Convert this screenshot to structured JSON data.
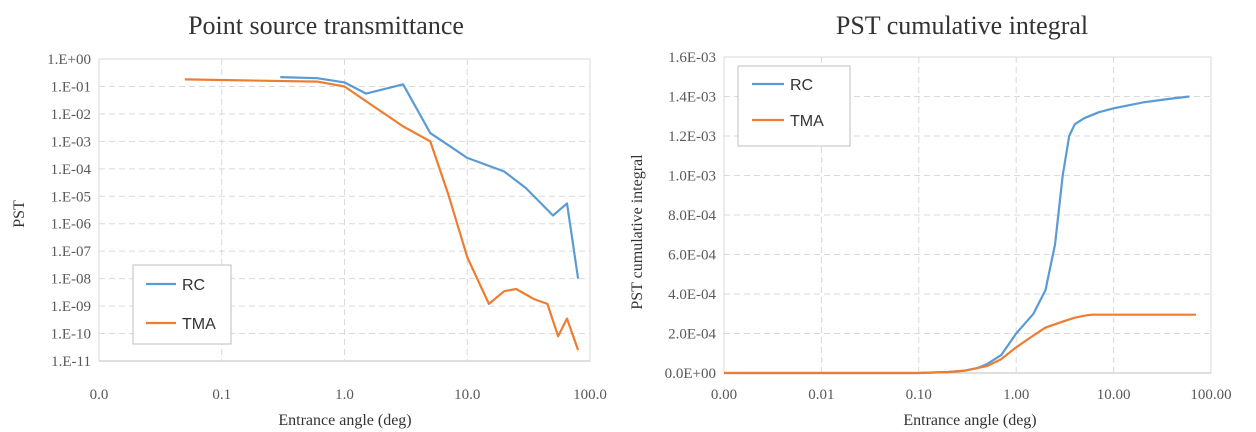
{
  "chart_data": [
    {
      "type": "line",
      "title": "Point source transmittance",
      "xlabel": "Entrance angle (deg)",
      "ylabel": "PST",
      "x_scale": "log",
      "y_scale": "log",
      "xlim": [
        0.01,
        100
      ],
      "ylim": [
        1e-11,
        1
      ],
      "x_ticks": [
        0.01,
        0.1,
        1,
        10,
        100
      ],
      "x_tick_labels": [
        "0.0",
        "0.1",
        "1.0",
        "10.0",
        "100.0"
      ],
      "y_ticks": [
        1,
        0.1,
        0.01,
        0.001,
        0.0001,
        1e-05,
        1e-06,
        1e-07,
        1e-08,
        1e-09,
        1e-10,
        1e-11
      ],
      "y_tick_labels": [
        "1.E+00",
        "1.E-01",
        "1.E-02",
        "1.E-03",
        "1.E-04",
        "1.E-05",
        "1.E-06",
        "1.E-07",
        "1.E-08",
        "1.E-09",
        "1.E-10",
        "1.E-11"
      ],
      "grid": true,
      "legend_position": "bottom-left",
      "series": [
        {
          "name": "RC",
          "color": "#5B9BD5",
          "x": [
            0.3,
            0.6,
            1.0,
            1.5,
            3.0,
            5.0,
            10.0,
            20.0,
            30.0,
            50.0,
            65.0,
            80.0
          ],
          "y": [
            0.22,
            0.2,
            0.14,
            0.055,
            0.12,
            0.002,
            0.00025,
            8e-05,
            2e-05,
            2e-06,
            5.5e-06,
            1e-08
          ]
        },
        {
          "name": "TMA",
          "color": "#ED7D31",
          "x": [
            0.05,
            0.6,
            1.0,
            3.0,
            5.0,
            7.0,
            10.0,
            15.0,
            20.0,
            25.0,
            35.0,
            45.0,
            55.0,
            65.0,
            80.0
          ],
          "y": [
            0.18,
            0.15,
            0.1,
            0.0035,
            0.001,
            1.2e-05,
            6e-08,
            1.2e-09,
            3.5e-09,
            4.2e-09,
            1.8e-09,
            1.2e-09,
            8e-11,
            3.5e-10,
            2.5e-11
          ]
        }
      ]
    },
    {
      "type": "line",
      "title": "PST cumulative integral",
      "xlabel": "Entrance angle (deg)",
      "ylabel": "PST cumulative integral",
      "x_scale": "log",
      "y_scale": "linear",
      "xlim": [
        0.001,
        100
      ],
      "ylim": [
        0,
        0.0016
      ],
      "x_ticks": [
        0.001,
        0.01,
        0.1,
        1,
        10,
        100
      ],
      "x_tick_labels": [
        "0.00",
        "0.01",
        "0.10",
        "1.00",
        "10.00",
        "100.00"
      ],
      "y_ticks": [
        0,
        0.0002,
        0.0004,
        0.0006,
        0.0008,
        0.001,
        0.0012,
        0.0014,
        0.0016
      ],
      "y_tick_labels": [
        "0.0E+00",
        "2.0E-04",
        "4.0E-04",
        "6.0E-04",
        "8.0E-04",
        "1.0E-03",
        "1.2E-03",
        "1.4E-03",
        "1.6E-03"
      ],
      "grid": true,
      "legend_position": "top-left",
      "series": [
        {
          "name": "RC",
          "color": "#5B9BD5",
          "x": [
            0.001,
            0.1,
            0.2,
            0.3,
            0.4,
            0.5,
            0.7,
            1.0,
            1.5,
            2.0,
            2.5,
            3.0,
            3.5,
            4.0,
            5.0,
            7.0,
            10.0,
            20.0,
            40.0,
            60.0
          ],
          "y": [
            0,
            0,
            5e-06,
            1.2e-05,
            2.5e-05,
            4.5e-05,
            9e-05,
            0.0002,
            0.0003,
            0.00042,
            0.00065,
            0.001,
            0.0012,
            0.00126,
            0.00129,
            0.00132,
            0.00134,
            0.00137,
            0.00139,
            0.0014
          ]
        },
        {
          "name": "TMA",
          "color": "#ED7D31",
          "x": [
            0.001,
            0.1,
            0.2,
            0.3,
            0.5,
            0.7,
            1.0,
            1.5,
            2.0,
            3.0,
            4.0,
            5.0,
            6.0,
            10.0,
            30.0,
            70.0
          ],
          "y": [
            0,
            0,
            5e-06,
            1.2e-05,
            3.5e-05,
            7e-05,
            0.00013,
            0.00019,
            0.00023,
            0.00026,
            0.00028,
            0.00029,
            0.000295,
            0.000295,
            0.000295,
            0.000295
          ]
        }
      ]
    }
  ]
}
